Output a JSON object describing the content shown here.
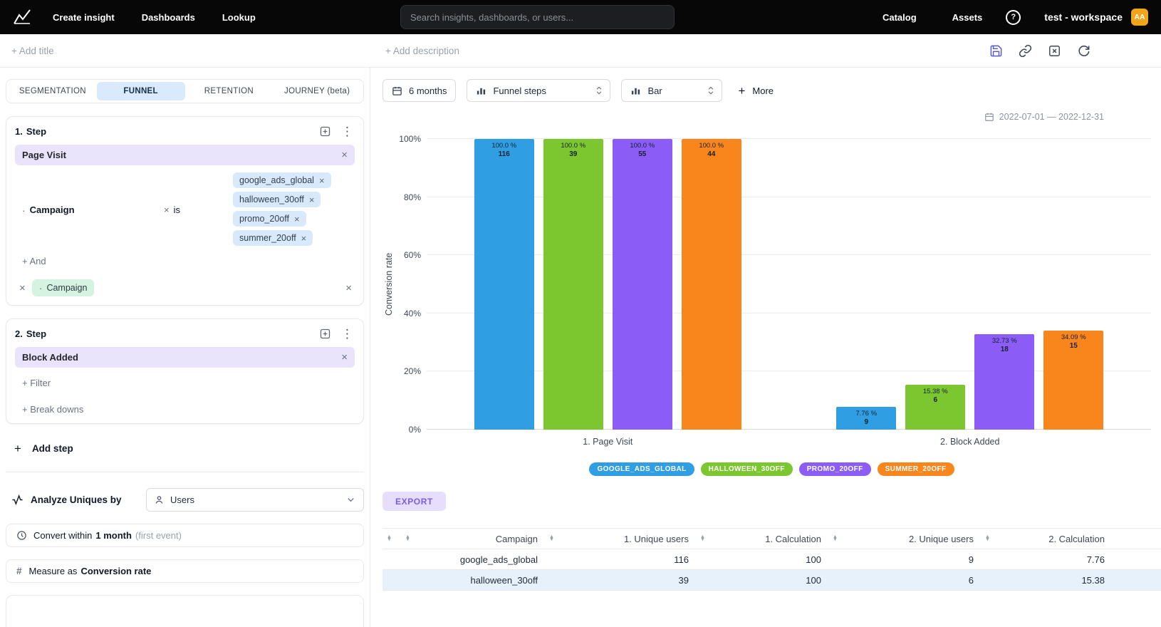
{
  "icons": {
    "close": "×",
    "kebab": "⋮",
    "bullet": "·",
    "sort_asc": "▲",
    "sort_desc": "▼",
    "help": "?",
    "hash": "#",
    "plus": "+"
  },
  "topnav": {
    "menu": [
      {
        "label": "Create insight"
      },
      {
        "label": "Dashboards"
      },
      {
        "label": "Lookup"
      }
    ],
    "search_placeholder": "Search insights, dashboards, or users...",
    "right_menu": [
      {
        "label": "Catalog"
      },
      {
        "label": "Assets"
      }
    ],
    "workspace_name": "test - workspace",
    "avatar_initials": "AA",
    "avatar_bg": "#f0a51a"
  },
  "header": {
    "add_title": "+ Add title",
    "add_description": "+ Add description"
  },
  "left_panel": {
    "tabs": [
      {
        "label": "SEGMENTATION",
        "active": false
      },
      {
        "label": "FUNNEL",
        "active": true
      },
      {
        "label": "RETENTION",
        "active": false
      },
      {
        "label": "JOURNEY (beta)",
        "active": false
      }
    ],
    "step1": {
      "index": "1.",
      "title": "Step",
      "event": "Page Visit",
      "filter_property": "Campaign",
      "filter_operator": "is",
      "filter_values": [
        "google_ads_global",
        "halloween_30off",
        "promo_20off",
        "summer_20off"
      ],
      "and_link": "+ And",
      "breakdown_property": "Campaign"
    },
    "step2": {
      "index": "2.",
      "title": "Step",
      "event": "Block Added",
      "filter_link": "+ Filter",
      "breakdowns_link": "+ Break downs"
    },
    "add_step_label": "Add step",
    "analyze_label": "Analyze Uniques by",
    "analyze_value": "Users",
    "convert_prefix": "Convert within",
    "convert_value": "1 month",
    "convert_suffix": "(first event)",
    "measure_prefix": "Measure as",
    "measure_value": "Conversion rate"
  },
  "toolbar": {
    "period_button": "6 months",
    "view_select": "Funnel steps",
    "chart_type_select": "Bar",
    "more_button": "More",
    "date_range": "2022-07-01 — 2022-12-31"
  },
  "chart_data": {
    "type": "bar",
    "title": "",
    "ylabel": "Conversion rate",
    "ylim": [
      0,
      100
    ],
    "yticks_pct": [
      0,
      20,
      40,
      60,
      80,
      100
    ],
    "grid": true,
    "legend_position": "bottom",
    "categories": [
      "1. Page Visit",
      "2. Block Added"
    ],
    "series": [
      {
        "name": "GOOGLE_ADS_GLOBAL",
        "color": "#2f9ee3",
        "bars": [
          {
            "label": "100.0 %",
            "count": 116,
            "pct": 100
          },
          {
            "label": "7.76 %",
            "count": 9,
            "pct": 7.76
          }
        ]
      },
      {
        "name": "HALLOWEEN_30OFF",
        "color": "#7cc62f",
        "bars": [
          {
            "label": "100.0 %",
            "count": 39,
            "pct": 100
          },
          {
            "label": "15.38 %",
            "count": 6,
            "pct": 15.38
          }
        ]
      },
      {
        "name": "PROMO_20OFF",
        "color": "#8b5cf6",
        "bars": [
          {
            "label": "100.0 %",
            "count": 55,
            "pct": 100
          },
          {
            "label": "32.73 %",
            "count": 18,
            "pct": 32.73
          }
        ]
      },
      {
        "name": "SUMMER_20OFF",
        "color": "#f8861d",
        "bars": [
          {
            "label": "100.0 %",
            "count": 44,
            "pct": 100
          },
          {
            "label": "34.09 %",
            "count": 15,
            "pct": 34.09
          }
        ]
      }
    ]
  },
  "export_label": "EXPORT",
  "table": {
    "headers": [
      "",
      "Campaign",
      "1. Unique users",
      "1. Calculation",
      "2. Unique users",
      "2. Calculation"
    ],
    "rows": [
      {
        "cells": [
          "",
          "google_ads_global",
          "116",
          "100",
          "9",
          "7.76"
        ],
        "highlight": false
      },
      {
        "cells": [
          "",
          "halloween_30off",
          "39",
          "100",
          "6",
          "15.38"
        ],
        "highlight": true
      }
    ]
  }
}
